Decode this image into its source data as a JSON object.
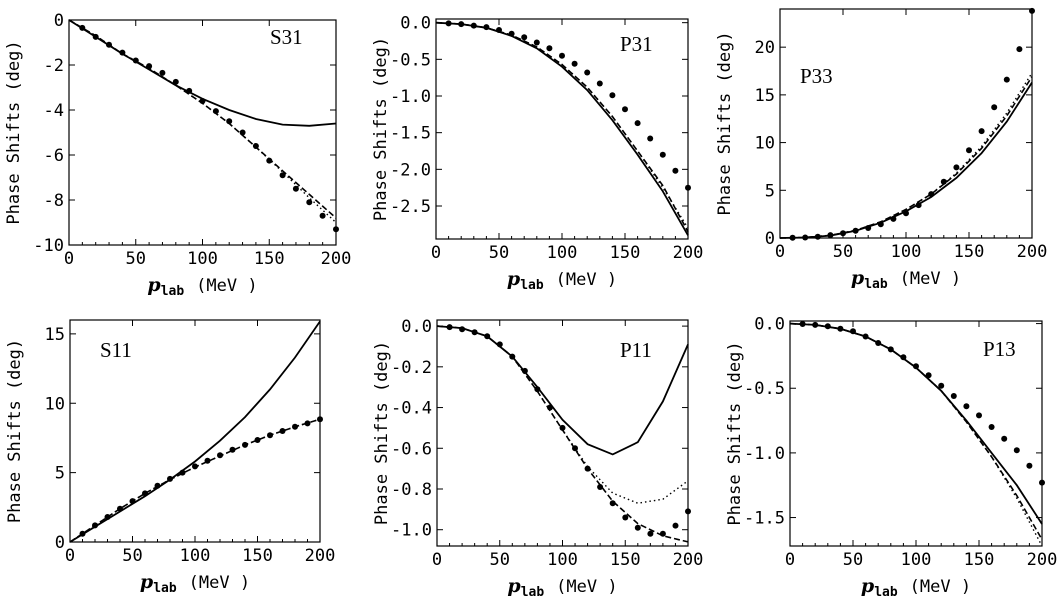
{
  "figure": {
    "xlabel_var": "p",
    "xlabel_sub": "lab",
    "xlabel_unit": "(MeV )",
    "ylabel": "Phase Shifts (deg)"
  },
  "chart_data": [
    {
      "type": "line",
      "label": "S31",
      "xlim": [
        0,
        200
      ],
      "ylim": [
        -10,
        0
      ],
      "xticks": [
        0,
        50,
        100,
        150,
        200
      ],
      "yticks": [
        0,
        -2,
        -4,
        -6,
        -8,
        -10
      ],
      "ytick_labels": [
        "0",
        "-2",
        "-4",
        "-6",
        "-8",
        "-10"
      ],
      "series": [
        {
          "style": "solid",
          "x": [
            0,
            20,
            40,
            60,
            80,
            100,
            120,
            140,
            160,
            180,
            200
          ],
          "y": [
            0,
            -0.75,
            -1.5,
            -2.2,
            -2.9,
            -3.5,
            -4.0,
            -4.4,
            -4.65,
            -4.7,
            -4.6
          ]
        },
        {
          "style": "dashed",
          "x": [
            0,
            20,
            40,
            60,
            80,
            100,
            120,
            140,
            160,
            180,
            200
          ],
          "y": [
            0,
            -0.7,
            -1.5,
            -2.15,
            -2.9,
            -3.7,
            -4.6,
            -5.65,
            -6.7,
            -7.75,
            -8.8
          ]
        },
        {
          "style": "dotted",
          "x": [
            0,
            20,
            40,
            60,
            80,
            100,
            120,
            140,
            160,
            180,
            200
          ],
          "y": [
            0,
            -0.7,
            -1.5,
            -2.15,
            -2.9,
            -3.7,
            -4.6,
            -5.65,
            -6.75,
            -7.9,
            -9.0
          ]
        },
        {
          "style": "points",
          "x": [
            10,
            20,
            30,
            40,
            50,
            60,
            70,
            80,
            90,
            100,
            110,
            120,
            130,
            140,
            150,
            160,
            170,
            180,
            190,
            200
          ],
          "y": [
            -0.35,
            -0.75,
            -1.1,
            -1.45,
            -1.8,
            -2.05,
            -2.35,
            -2.75,
            -3.15,
            -3.6,
            -4.05,
            -4.5,
            -5.0,
            -5.6,
            -6.25,
            -6.9,
            -7.5,
            -8.1,
            -8.7,
            -9.3
          ]
        }
      ]
    },
    {
      "type": "line",
      "label": "P31",
      "xlim": [
        0,
        200
      ],
      "ylim": [
        -2.95,
        0.05
      ],
      "xticks": [
        0,
        50,
        100,
        150,
        200
      ],
      "yticks": [
        0,
        -0.5,
        -1,
        -1.5,
        -2,
        -2.5
      ],
      "ytick_labels": [
        "0.0",
        "-0.5",
        "-1.0",
        "-1.5",
        "-2.0",
        "-2.5"
      ],
      "series": [
        {
          "style": "solid",
          "x": [
            0,
            20,
            40,
            60,
            80,
            100,
            120,
            140,
            160,
            180,
            200
          ],
          "y": [
            0,
            -0.02,
            -0.07,
            -0.18,
            -0.35,
            -0.6,
            -0.92,
            -1.33,
            -1.8,
            -2.3,
            -2.9
          ]
        },
        {
          "style": "dashed",
          "x": [
            0,
            20,
            40,
            60,
            80,
            100,
            120,
            140,
            160,
            180,
            200
          ],
          "y": [
            0,
            -0.02,
            -0.07,
            -0.17,
            -0.33,
            -0.57,
            -0.88,
            -1.28,
            -1.75,
            -2.22,
            -2.85
          ]
        },
        {
          "style": "dotted",
          "x": [
            0,
            20,
            40,
            60,
            80,
            100,
            120,
            140,
            160,
            180,
            200
          ],
          "y": [
            0,
            -0.02,
            -0.07,
            -0.17,
            -0.33,
            -0.57,
            -0.88,
            -1.28,
            -1.75,
            -2.25,
            -2.8
          ]
        },
        {
          "style": "points",
          "x": [
            10,
            20,
            30,
            40,
            50,
            60,
            70,
            80,
            90,
            100,
            110,
            120,
            130,
            140,
            150,
            160,
            170,
            180,
            190,
            200
          ],
          "y": [
            -0.01,
            -0.02,
            -0.04,
            -0.06,
            -0.1,
            -0.15,
            -0.2,
            -0.27,
            -0.35,
            -0.45,
            -0.56,
            -0.68,
            -0.83,
            -0.99,
            -1.18,
            -1.37,
            -1.58,
            -1.8,
            -2.02,
            -2.25
          ]
        }
      ]
    },
    {
      "type": "line",
      "label": "P33",
      "xlim": [
        0,
        200
      ],
      "ylim": [
        0,
        24
      ],
      "xticks": [
        0,
        50,
        100,
        150,
        200
      ],
      "yticks": [
        0,
        5,
        10,
        15,
        20
      ],
      "ytick_labels": [
        "0",
        "5",
        "10",
        "15",
        "20"
      ],
      "series": [
        {
          "style": "solid",
          "x": [
            0,
            20,
            40,
            60,
            80,
            100,
            120,
            140,
            160,
            180,
            200
          ],
          "y": [
            0,
            0.05,
            0.25,
            0.75,
            1.6,
            2.8,
            4.3,
            6.3,
            8.9,
            12.2,
            16.3
          ]
        },
        {
          "style": "dashed",
          "x": [
            0,
            20,
            40,
            60,
            80,
            100,
            120,
            140,
            160,
            180,
            200
          ],
          "y": [
            0,
            0.05,
            0.27,
            0.8,
            1.7,
            3.0,
            4.6,
            6.7,
            9.4,
            12.8,
            16.9
          ]
        },
        {
          "style": "dotted",
          "x": [
            0,
            20,
            40,
            60,
            80,
            100,
            120,
            140,
            160,
            180,
            200
          ],
          "y": [
            0,
            0.05,
            0.27,
            0.8,
            1.7,
            3.0,
            4.6,
            6.8,
            9.6,
            13.1,
            17.3
          ]
        },
        {
          "style": "points",
          "x": [
            10,
            20,
            30,
            40,
            50,
            60,
            70,
            80,
            90,
            100,
            110,
            120,
            130,
            140,
            150,
            160,
            170,
            180,
            190,
            200
          ],
          "y": [
            0.02,
            0.05,
            0.13,
            0.3,
            0.5,
            0.75,
            1.05,
            1.45,
            2.0,
            2.6,
            3.45,
            4.6,
            5.9,
            7.4,
            9.2,
            11.2,
            13.7,
            16.6,
            19.8,
            23.8
          ]
        }
      ]
    },
    {
      "type": "line",
      "label": "S11",
      "xlim": [
        0,
        200
      ],
      "ylim": [
        0,
        16
      ],
      "xticks": [
        0,
        50,
        100,
        150,
        200
      ],
      "yticks": [
        0,
        5,
        10,
        15
      ],
      "ytick_labels": [
        "0",
        "5",
        "10",
        "15"
      ],
      "series": [
        {
          "style": "solid",
          "x": [
            0,
            20,
            40,
            60,
            80,
            100,
            120,
            140,
            160,
            180,
            200
          ],
          "y": [
            0,
            1.1,
            2.2,
            3.3,
            4.5,
            5.8,
            7.3,
            9.0,
            11.0,
            13.3,
            15.9
          ]
        },
        {
          "style": "dashed",
          "x": [
            0,
            20,
            40,
            60,
            80,
            100,
            120,
            140,
            160,
            180,
            200
          ],
          "y": [
            0,
            1.2,
            2.4,
            3.5,
            4.5,
            5.4,
            6.2,
            7.0,
            7.7,
            8.3,
            8.85
          ]
        },
        {
          "style": "dotted",
          "x": [
            0,
            20,
            40,
            60,
            80,
            100,
            120,
            140,
            160,
            180,
            200
          ],
          "y": [
            0,
            1.2,
            2.4,
            3.5,
            4.5,
            5.4,
            6.2,
            7.0,
            7.7,
            8.3,
            8.85
          ]
        },
        {
          "style": "points",
          "x": [
            10,
            20,
            30,
            40,
            50,
            60,
            70,
            80,
            90,
            100,
            110,
            120,
            130,
            140,
            150,
            160,
            170,
            180,
            190,
            200
          ],
          "y": [
            0.6,
            1.2,
            1.8,
            2.4,
            2.95,
            3.5,
            4.05,
            4.55,
            5.0,
            5.45,
            5.85,
            6.25,
            6.65,
            7.0,
            7.35,
            7.7,
            8.0,
            8.3,
            8.55,
            8.85
          ]
        }
      ]
    },
    {
      "type": "line",
      "label": "P11",
      "xlim": [
        0,
        200
      ],
      "ylim": [
        -1.08,
        0.03
      ],
      "xticks": [
        0,
        50,
        100,
        150,
        200
      ],
      "yticks": [
        0,
        -0.2,
        -0.4,
        -0.6,
        -0.8,
        -1
      ],
      "ytick_labels": [
        "0.0",
        "-0.2",
        "-0.4",
        "-0.6",
        "-0.8",
        "-1.0"
      ],
      "series": [
        {
          "style": "solid",
          "x": [
            0,
            20,
            40,
            60,
            80,
            100,
            120,
            140,
            160,
            180,
            200
          ],
          "y": [
            0,
            -0.01,
            -0.05,
            -0.15,
            -0.3,
            -0.46,
            -0.58,
            -0.63,
            -0.57,
            -0.37,
            -0.09
          ]
        },
        {
          "style": "dashed",
          "x": [
            0,
            20,
            40,
            60,
            80,
            100,
            120,
            140,
            160,
            180,
            200
          ],
          "y": [
            0,
            -0.01,
            -0.05,
            -0.15,
            -0.32,
            -0.51,
            -0.7,
            -0.86,
            -0.97,
            -1.03,
            -1.06
          ]
        },
        {
          "style": "dotted",
          "x": [
            0,
            20,
            40,
            60,
            80,
            100,
            120,
            140,
            160,
            180,
            200
          ],
          "y": [
            0,
            -0.01,
            -0.05,
            -0.15,
            -0.32,
            -0.51,
            -0.69,
            -0.82,
            -0.87,
            -0.85,
            -0.76
          ]
        },
        {
          "style": "points",
          "x": [
            10,
            20,
            30,
            40,
            50,
            60,
            70,
            80,
            90,
            100,
            110,
            120,
            130,
            140,
            150,
            160,
            170,
            180,
            190,
            200
          ],
          "y": [
            -0.005,
            -0.015,
            -0.03,
            -0.05,
            -0.09,
            -0.15,
            -0.22,
            -0.31,
            -0.4,
            -0.5,
            -0.6,
            -0.7,
            -0.79,
            -0.87,
            -0.94,
            -0.99,
            -1.02,
            -1.02,
            -0.98,
            -0.91
          ]
        }
      ]
    },
    {
      "type": "line",
      "label": "P13",
      "xlim": [
        0,
        200
      ],
      "ylim": [
        -1.72,
        0.02
      ],
      "xticks": [
        0,
        50,
        100,
        150,
        200
      ],
      "yticks": [
        0,
        -0.5,
        -1,
        -1.5
      ],
      "ytick_labels": [
        "0.0",
        "-0.5",
        "-1.0",
        "-1.5"
      ],
      "series": [
        {
          "style": "solid",
          "x": [
            0,
            20,
            40,
            60,
            80,
            100,
            120,
            140,
            160,
            180,
            200
          ],
          "y": [
            0,
            -0.01,
            -0.04,
            -0.1,
            -0.2,
            -0.34,
            -0.52,
            -0.75,
            -1.0,
            -1.25,
            -1.55
          ]
        },
        {
          "style": "dashed",
          "x": [
            0,
            20,
            40,
            60,
            80,
            100,
            120,
            140,
            160,
            180,
            200
          ],
          "y": [
            0,
            -0.01,
            -0.04,
            -0.1,
            -0.2,
            -0.34,
            -0.52,
            -0.76,
            -1.03,
            -1.33,
            -1.67
          ]
        },
        {
          "style": "dotted",
          "x": [
            0,
            20,
            40,
            60,
            80,
            100,
            120,
            140,
            160,
            180,
            200
          ],
          "y": [
            0,
            -0.01,
            -0.04,
            -0.1,
            -0.2,
            -0.34,
            -0.52,
            -0.76,
            -1.03,
            -1.35,
            -1.72
          ]
        },
        {
          "style": "points",
          "x": [
            10,
            20,
            30,
            40,
            50,
            60,
            70,
            80,
            90,
            100,
            110,
            120,
            130,
            140,
            150,
            160,
            170,
            180,
            190,
            200
          ],
          "y": [
            -0.003,
            -0.01,
            -0.02,
            -0.04,
            -0.06,
            -0.1,
            -0.15,
            -0.2,
            -0.26,
            -0.33,
            -0.4,
            -0.48,
            -0.56,
            -0.64,
            -0.71,
            -0.8,
            -0.89,
            -0.98,
            -1.1,
            -1.23
          ]
        }
      ]
    }
  ]
}
